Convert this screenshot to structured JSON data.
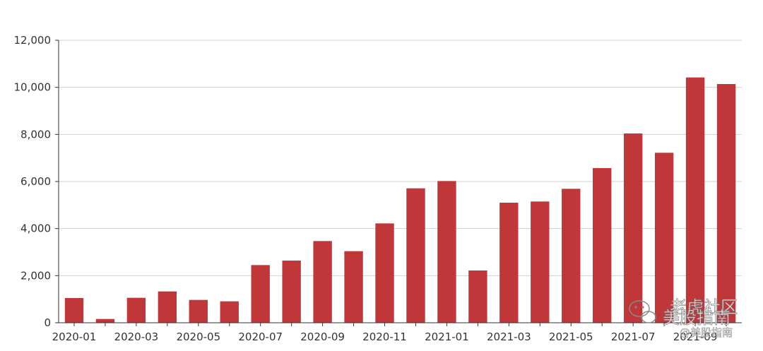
{
  "chart_data": {
    "type": "bar",
    "title": "",
    "xlabel": "",
    "ylabel": "",
    "categories": [
      "2020-01",
      "2020-02",
      "2020-03",
      "2020-04",
      "2020-05",
      "2020-06",
      "2020-07",
      "2020-08",
      "2020-09",
      "2020-10",
      "2020-11",
      "2020-12",
      "2021-01",
      "2021-02",
      "2021-03",
      "2021-04",
      "2021-05",
      "2021-06",
      "2021-07",
      "2021-08",
      "2021-09",
      "2021-10"
    ],
    "x_tick_labels": [
      "2020-01",
      "2020-03",
      "2020-05",
      "2020-07",
      "2020-09",
      "2020-11",
      "2021-01",
      "2021-03",
      "2021-05",
      "2021-07",
      "2021-09"
    ],
    "values": [
      1050,
      160,
      1060,
      1330,
      970,
      910,
      2450,
      2640,
      3470,
      3040,
      4220,
      5710,
      6020,
      2220,
      5100,
      5150,
      5690,
      6570,
      8040,
      7220,
      10420,
      10140
    ],
    "ylim": [
      0,
      12000
    ],
    "y_ticks": [
      0,
      2000,
      4000,
      6000,
      8000,
      10000,
      12000
    ],
    "y_tick_labels": [
      "0",
      "2,000",
      "4,000",
      "6,000",
      "8,000",
      "10,000",
      "12,000"
    ],
    "grid": true,
    "legend": "none",
    "bar_color": "#c0373a"
  },
  "watermark": {
    "line1": "美股指南",
    "line2": "@美股指南",
    "brand": "老虎社区"
  }
}
